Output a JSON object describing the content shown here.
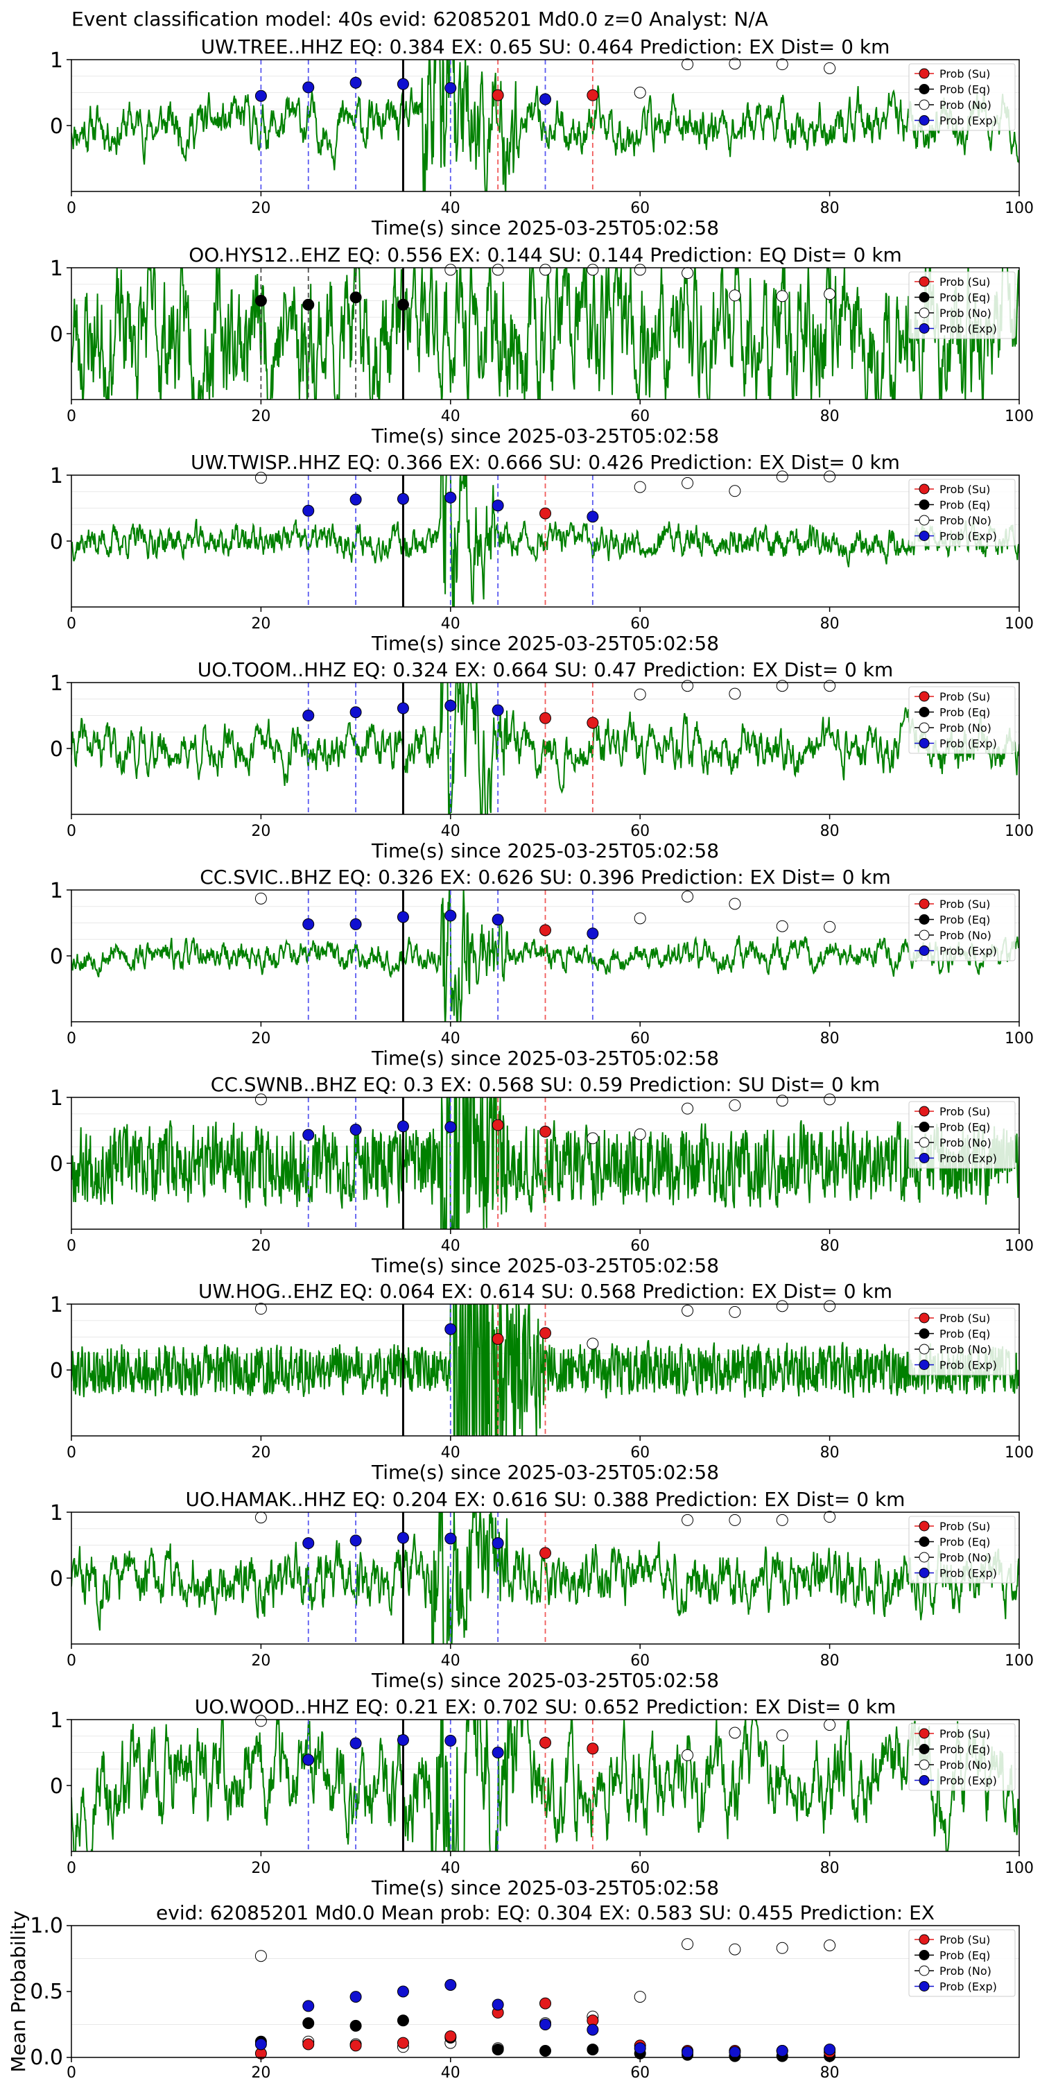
{
  "suptitle": "Event classification model: 40s evid: 62085201 Md0.0 z=0 Analyst: N/A",
  "legend": [
    "Prob (Su)",
    "Prob (Eq)",
    "Prob (No)",
    "Prob (Exp)"
  ],
  "colors": {
    "waveform": "#008000",
    "su": "#e31a1c",
    "eq": "#000000",
    "no": "#ffffff",
    "exp": "#1010d0",
    "vline_exp": "#5a5af0",
    "vline_su": "#f05a5a",
    "vline_eq": "#505050",
    "origin_line": "#000000"
  },
  "chart_data": [
    {
      "type": "line",
      "title": "UW.TREE..HHZ   EQ: 0.384  EX: 0.65  SU: 0.464   Prediction: EX    Dist= 0 km",
      "xlabel": "Time(s) since 2025-03-25T05:02:58",
      "xlim": [
        0,
        100
      ],
      "ylim": [
        -1,
        1
      ],
      "xticks": [
        0,
        20,
        40,
        60,
        80,
        100
      ],
      "yticks": [
        0,
        1
      ],
      "origin_time": 35,
      "waveform": {
        "seed": 11,
        "smooth": 0.82,
        "amp": 0.18,
        "burst_start": 37,
        "burst_end": 47,
        "burst_amp": 0.8
      },
      "markers": {
        "exp": [
          [
            20,
            0.45
          ],
          [
            25,
            0.58
          ],
          [
            30,
            0.65
          ],
          [
            35,
            0.63
          ],
          [
            40,
            0.57
          ],
          [
            50,
            0.4
          ]
        ],
        "su": [
          [
            45,
            0.46
          ],
          [
            55,
            0.46
          ]
        ],
        "eq": [],
        "no": [
          [
            60,
            0.5
          ],
          [
            65,
            0.93
          ],
          [
            70,
            0.94
          ],
          [
            75,
            0.93
          ],
          [
            80,
            0.87
          ]
        ]
      },
      "vlines": {
        "exp": [
          20,
          25,
          30,
          40,
          50
        ],
        "su": [
          45,
          55
        ],
        "eq": []
      }
    },
    {
      "type": "line",
      "title": "OO.HYS12..EHZ   EQ: 0.556  EX: 0.144  SU: 0.144   Prediction: EQ    Dist= 0 km",
      "xlabel": "Time(s) since 2025-03-25T05:02:58",
      "xlim": [
        0,
        100
      ],
      "ylim": [
        -1,
        1
      ],
      "xticks": [
        0,
        20,
        40,
        60,
        80,
        100
      ],
      "yticks": [
        0,
        1
      ],
      "origin_time": 35,
      "waveform": {
        "seed": 23,
        "smooth": 0.78,
        "amp": 0.45,
        "burst_start": 0,
        "burst_end": 0,
        "burst_amp": 0
      },
      "markers": {
        "exp": [],
        "su": [],
        "eq": [
          [
            20,
            0.5
          ],
          [
            25,
            0.44
          ],
          [
            30,
            0.55
          ],
          [
            35,
            0.44
          ]
        ],
        "no": [
          [
            40,
            0.97
          ],
          [
            45,
            0.97
          ],
          [
            50,
            0.97
          ],
          [
            55,
            0.97
          ],
          [
            60,
            0.97
          ],
          [
            65,
            0.92
          ],
          [
            70,
            0.58
          ],
          [
            75,
            0.57
          ],
          [
            80,
            0.6
          ]
        ]
      },
      "vlines": {
        "exp": [],
        "su": [],
        "eq": [
          20,
          25,
          30
        ]
      }
    },
    {
      "type": "line",
      "title": "UW.TWISP..HHZ   EQ: 0.366  EX: 0.666  SU: 0.426   Prediction: EX    Dist= 0 km",
      "xlabel": "Time(s) since 2025-03-25T05:02:58",
      "xlim": [
        0,
        100
      ],
      "ylim": [
        -1,
        1
      ],
      "xticks": [
        0,
        20,
        40,
        60,
        80,
        100
      ],
      "yticks": [
        0,
        1
      ],
      "origin_time": 35,
      "waveform": {
        "seed": 37,
        "smooth": 0.7,
        "amp": 0.08,
        "burst_start": 39,
        "burst_end": 45,
        "burst_amp": 0.6
      },
      "markers": {
        "exp": [
          [
            25,
            0.46
          ],
          [
            30,
            0.63
          ],
          [
            35,
            0.64
          ],
          [
            40,
            0.66
          ],
          [
            45,
            0.54
          ],
          [
            55,
            0.37
          ]
        ],
        "su": [
          [
            50,
            0.42
          ]
        ],
        "eq": [],
        "no": [
          [
            20,
            0.96
          ],
          [
            60,
            0.82
          ],
          [
            65,
            0.88
          ],
          [
            70,
            0.76
          ],
          [
            75,
            0.98
          ],
          [
            80,
            0.98
          ]
        ]
      },
      "vlines": {
        "exp": [
          25,
          30,
          40,
          45,
          55
        ],
        "su": [
          50
        ],
        "eq": []
      }
    },
    {
      "type": "line",
      "title": "UO.TOOM..HHZ   EQ: 0.324  EX: 0.664  SU: 0.47   Prediction: EX    Dist= 0 km",
      "xlabel": "Time(s) since 2025-03-25T05:02:58",
      "xlim": [
        0,
        100
      ],
      "ylim": [
        -1,
        1
      ],
      "xticks": [
        0,
        20,
        40,
        60,
        80,
        100
      ],
      "yticks": [
        0,
        1
      ],
      "origin_time": 35,
      "waveform": {
        "seed": 41,
        "smooth": 0.82,
        "amp": 0.17,
        "burst_start": 39,
        "burst_end": 46,
        "burst_amp": 0.65
      },
      "markers": {
        "exp": [
          [
            25,
            0.5
          ],
          [
            30,
            0.55
          ],
          [
            35,
            0.61
          ],
          [
            40,
            0.65
          ],
          [
            45,
            0.58
          ]
        ],
        "su": [
          [
            50,
            0.46
          ],
          [
            55,
            0.39
          ]
        ],
        "eq": [],
        "no": [
          [
            60,
            0.82
          ],
          [
            65,
            0.95
          ],
          [
            70,
            0.83
          ],
          [
            75,
            0.95
          ],
          [
            80,
            0.95
          ]
        ]
      },
      "vlines": {
        "exp": [
          25,
          30,
          40,
          45
        ],
        "su": [
          50,
          55
        ],
        "eq": []
      }
    },
    {
      "type": "line",
      "title": "CC.SVIC..BHZ   EQ: 0.326  EX: 0.626  SU: 0.396   Prediction: EX    Dist= 0 km",
      "xlabel": "Time(s) since 2025-03-25T05:02:58",
      "xlim": [
        0,
        100
      ],
      "ylim": [
        -1,
        1
      ],
      "xticks": [
        0,
        20,
        40,
        60,
        80,
        100
      ],
      "yticks": [
        0,
        1
      ],
      "origin_time": 35,
      "waveform": {
        "seed": 53,
        "smooth": 0.75,
        "amp": 0.08,
        "burst_start": 39,
        "burst_end": 46,
        "burst_amp": 0.6
      },
      "markers": {
        "exp": [
          [
            25,
            0.48
          ],
          [
            30,
            0.48
          ],
          [
            35,
            0.59
          ],
          [
            40,
            0.61
          ],
          [
            45,
            0.55
          ],
          [
            55,
            0.34
          ]
        ],
        "su": [
          [
            50,
            0.39
          ]
        ],
        "eq": [],
        "no": [
          [
            20,
            0.87
          ],
          [
            60,
            0.57
          ],
          [
            65,
            0.9
          ],
          [
            70,
            0.79
          ],
          [
            75,
            0.45
          ],
          [
            80,
            0.44
          ]
        ]
      },
      "vlines": {
        "exp": [
          25,
          30,
          40,
          45,
          55
        ],
        "su": [
          50
        ],
        "eq": []
      }
    },
    {
      "type": "line",
      "title": "CC.SWNB..BHZ   EQ: 0.3  EX: 0.568  SU: 0.59   Prediction: SU    Dist= 0 km",
      "xlabel": "Time(s) since 2025-03-25T05:02:58",
      "xlim": [
        0,
        100
      ],
      "ylim": [
        -1,
        1
      ],
      "xticks": [
        0,
        20,
        40,
        60,
        80,
        100
      ],
      "yticks": [
        0,
        1
      ],
      "origin_time": 35,
      "waveform": {
        "seed": 67,
        "smooth": 0.35,
        "amp": 0.12,
        "burst_start": 39,
        "burst_end": 46,
        "burst_amp": 0.7
      },
      "markers": {
        "exp": [
          [
            25,
            0.43
          ],
          [
            30,
            0.51
          ],
          [
            35,
            0.56
          ],
          [
            40,
            0.55
          ]
        ],
        "su": [
          [
            45,
            0.58
          ],
          [
            50,
            0.48
          ]
        ],
        "eq": [],
        "no": [
          [
            20,
            0.97
          ],
          [
            55,
            0.38
          ],
          [
            60,
            0.44
          ],
          [
            65,
            0.83
          ],
          [
            70,
            0.88
          ],
          [
            75,
            0.95
          ],
          [
            80,
            0.97
          ]
        ]
      },
      "vlines": {
        "exp": [
          25,
          30,
          40
        ],
        "su": [
          45,
          50
        ],
        "eq": []
      }
    },
    {
      "type": "line",
      "title": "UW.HOG..EHZ   EQ: 0.064  EX: 0.614  SU: 0.568   Prediction: EX    Dist= 0 km",
      "xlabel": "Time(s) since 2025-03-25T05:02:58",
      "xlim": [
        0,
        100
      ],
      "ylim": [
        -1,
        1
      ],
      "xticks": [
        0,
        20,
        40,
        60,
        80,
        100
      ],
      "yticks": [
        0,
        1
      ],
      "origin_time": 35,
      "waveform": {
        "seed": 79,
        "smooth": 0.2,
        "amp": 0.07,
        "burst_start": 40,
        "burst_end": 50,
        "burst_amp": 0.85
      },
      "markers": {
        "exp": [
          [
            40,
            0.62
          ]
        ],
        "su": [
          [
            45,
            0.47
          ],
          [
            50,
            0.56
          ]
        ],
        "eq": [],
        "no": [
          [
            20,
            0.93
          ],
          [
            55,
            0.4
          ],
          [
            65,
            0.9
          ],
          [
            70,
            0.88
          ],
          [
            75,
            0.97
          ],
          [
            80,
            0.97
          ]
        ]
      },
      "vlines": {
        "exp": [
          40
        ],
        "su": [
          45,
          50
        ],
        "eq": []
      }
    },
    {
      "type": "line",
      "title": "UO.HAMAK..HHZ   EQ: 0.204  EX: 0.616  SU: 0.388   Prediction: EX    Dist= 0 km",
      "xlabel": "Time(s) since 2025-03-25T05:02:58",
      "xlim": [
        0,
        100
      ],
      "ylim": [
        -1,
        1
      ],
      "xticks": [
        0,
        20,
        40,
        60,
        80,
        100
      ],
      "yticks": [
        0,
        1
      ],
      "origin_time": 35,
      "waveform": {
        "seed": 83,
        "smooth": 0.72,
        "amp": 0.15,
        "burst_start": 38,
        "burst_end": 46,
        "burst_amp": 0.75
      },
      "markers": {
        "exp": [
          [
            25,
            0.53
          ],
          [
            30,
            0.57
          ],
          [
            35,
            0.61
          ],
          [
            40,
            0.6
          ],
          [
            45,
            0.53
          ]
        ],
        "su": [
          [
            50,
            0.38
          ]
        ],
        "eq": [],
        "no": [
          [
            20,
            0.92
          ],
          [
            65,
            0.88
          ],
          [
            70,
            0.88
          ],
          [
            75,
            0.88
          ],
          [
            80,
            0.93
          ]
        ]
      },
      "vlines": {
        "exp": [
          25,
          30,
          40,
          45
        ],
        "su": [
          50
        ],
        "eq": []
      }
    },
    {
      "type": "line",
      "title": "UO.WOOD..HHZ   EQ: 0.21  EX: 0.702  SU: 0.652   Prediction: EX    Dist= 0 km",
      "xlabel": "Time(s) since 2025-03-25T05:02:58",
      "xlim": [
        0,
        100
      ],
      "ylim": [
        -1,
        1
      ],
      "xticks": [
        0,
        20,
        40,
        60,
        80,
        100
      ],
      "yticks": [
        0,
        1
      ],
      "origin_time": 35,
      "waveform": {
        "seed": 97,
        "smooth": 0.85,
        "amp": 0.4,
        "burst_start": 38,
        "burst_end": 48,
        "burst_amp": 0.55
      },
      "markers": {
        "exp": [
          [
            25,
            0.39
          ],
          [
            30,
            0.64
          ],
          [
            35,
            0.69
          ],
          [
            40,
            0.68
          ],
          [
            45,
            0.5
          ]
        ],
        "su": [
          [
            50,
            0.65
          ],
          [
            55,
            0.56
          ]
        ],
        "eq": [],
        "no": [
          [
            20,
            0.98
          ],
          [
            65,
            0.46
          ],
          [
            70,
            0.8
          ],
          [
            75,
            0.76
          ],
          [
            80,
            0.92
          ]
        ]
      },
      "vlines": {
        "exp": [
          25,
          30,
          40,
          45
        ],
        "su": [
          50,
          55
        ],
        "eq": []
      }
    },
    {
      "type": "scatter",
      "title": "evid: 62085201  Md0.0   Mean prob:    EQ: 0.304  EX: 0.583  SU: 0.455   Prediction: EX",
      "xlabel": "",
      "ylabel": "Mean Probability",
      "xlim": [
        0,
        100
      ],
      "ylim": [
        0,
        1
      ],
      "xticks": [
        0,
        20,
        40,
        60,
        80
      ],
      "yticks": [
        0.0,
        0.5,
        1.0
      ],
      "ytick_labels": [
        "0.0",
        "0.5",
        "1.0"
      ],
      "series": [
        {
          "name": "Prob (No)",
          "key": "no",
          "points": [
            [
              20,
              0.77
            ],
            [
              25,
              0.12
            ],
            [
              30,
              0.1
            ],
            [
              35,
              0.08
            ],
            [
              40,
              0.11
            ],
            [
              45,
              0.07
            ],
            [
              50,
              0.26
            ],
            [
              55,
              0.31
            ],
            [
              60,
              0.46
            ],
            [
              65,
              0.86
            ],
            [
              70,
              0.82
            ],
            [
              75,
              0.83
            ],
            [
              80,
              0.85
            ]
          ]
        },
        {
          "name": "Prob (Eq)",
          "key": "eq",
          "points": [
            [
              20,
              0.12
            ],
            [
              25,
              0.26
            ],
            [
              30,
              0.24
            ],
            [
              35,
              0.28
            ],
            [
              40,
              0.15
            ],
            [
              45,
              0.06
            ],
            [
              50,
              0.05
            ],
            [
              55,
              0.06
            ],
            [
              60,
              0.03
            ],
            [
              65,
              0.02
            ],
            [
              70,
              0.01
            ],
            [
              75,
              0.01
            ],
            [
              80,
              0.01
            ]
          ]
        },
        {
          "name": "Prob (Su)",
          "key": "su",
          "points": [
            [
              20,
              0.03
            ],
            [
              25,
              0.1
            ],
            [
              30,
              0.09
            ],
            [
              35,
              0.11
            ],
            [
              40,
              0.16
            ],
            [
              45,
              0.34
            ],
            [
              50,
              0.41
            ],
            [
              55,
              0.28
            ],
            [
              60,
              0.09
            ],
            [
              65,
              0.05
            ],
            [
              70,
              0.05
            ],
            [
              75,
              0.05
            ],
            [
              80,
              0.04
            ]
          ]
        },
        {
          "name": "Prob (Exp)",
          "key": "exp",
          "points": [
            [
              20,
              0.1
            ],
            [
              25,
              0.39
            ],
            [
              30,
              0.46
            ],
            [
              35,
              0.5
            ],
            [
              40,
              0.55
            ],
            [
              45,
              0.4
            ],
            [
              50,
              0.25
            ],
            [
              55,
              0.21
            ],
            [
              60,
              0.07
            ],
            [
              65,
              0.04
            ],
            [
              70,
              0.04
            ],
            [
              75,
              0.05
            ],
            [
              80,
              0.06
            ]
          ]
        }
      ]
    }
  ]
}
